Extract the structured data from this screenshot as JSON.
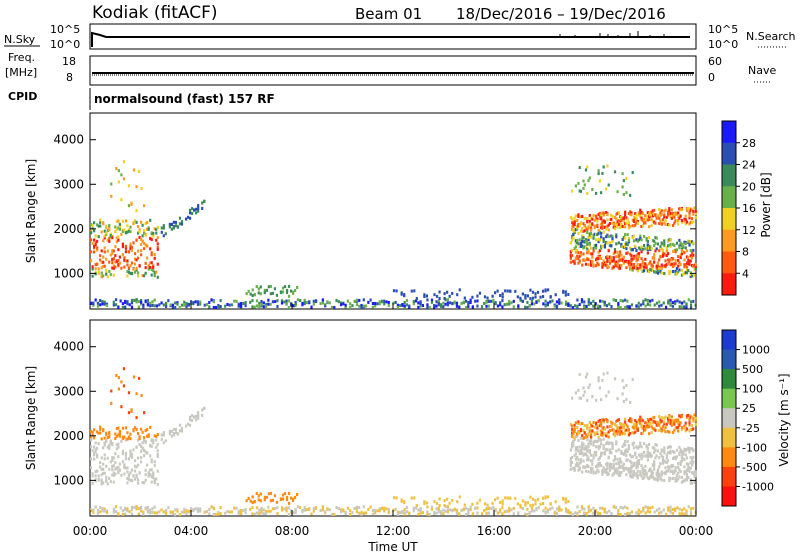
{
  "header": {
    "station": "Kodiak (fitACF)",
    "beam": "Beam 01",
    "date_range": "18/Dec/2016 – 19/Dec/2016"
  },
  "panels": {
    "nsky": {
      "left_label": "N.Sky",
      "right_label": "N.Search",
      "left_ticks": [
        "10^5",
        "10^0"
      ],
      "right_ticks": [
        "10^5",
        "10^0"
      ]
    },
    "freq": {
      "left_label_1": "Freq.",
      "left_label_2": "[MHz]",
      "right_label": "Nave",
      "left_ticks": [
        "18",
        "8"
      ],
      "right_ticks": [
        "60",
        "0"
      ]
    },
    "cpid": {
      "label": "CPID",
      "text": "normalsound (fast) 157 RF"
    }
  },
  "chart_data": [
    {
      "type": "heatmap",
      "name": "power",
      "ylabel": "Slant Range [km]",
      "ylim": [
        200,
        4600
      ],
      "y_ticks": [
        1000,
        2000,
        3000,
        4000
      ],
      "colorbar_label": "Power [dB]",
      "colorbar_ticks": [
        "4",
        "8",
        "12",
        "16",
        "20",
        "24",
        "28"
      ],
      "colorbar_colors": [
        "#1a1aff",
        "#2a4fb0",
        "#3a8a5a",
        "#6ab04a",
        "#f0d020",
        "#ff9a20",
        "#ff5a10",
        "#ff1a10"
      ]
    },
    {
      "type": "heatmap",
      "name": "velocity",
      "xlabel": "Time UT",
      "ylabel": "Slant Range [km]",
      "ylim": [
        200,
        4600
      ],
      "y_ticks": [
        1000,
        2000,
        3000,
        4000
      ],
      "x_ticks": [
        "00:00",
        "04:00",
        "08:00",
        "12:00",
        "16:00",
        "20:00",
        "00:00"
      ],
      "colorbar_label": "Velocity [m s⁻¹]",
      "colorbar_ticks": [
        "1000",
        "500",
        "100",
        "25",
        "-25",
        "-100",
        "-500",
        "-1000"
      ],
      "colorbar_colors": [
        "#1a3ad0",
        "#2a5ab0",
        "#2e8a3a",
        "#78c850",
        "#c8c8c0",
        "#f0c040",
        "#ff8a10",
        "#ff4010",
        "#ff1010"
      ]
    }
  ]
}
